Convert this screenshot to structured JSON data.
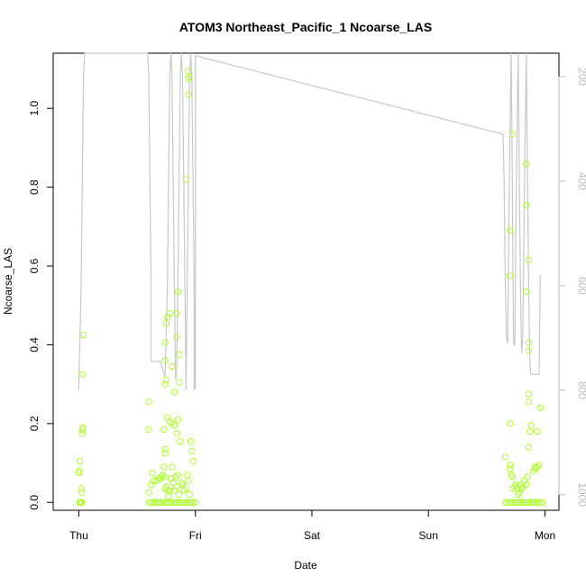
{
  "chart_data": {
    "type": "scatter",
    "title": "ATOM3 Northeast_Pacific_1 Ncoarse_LAS",
    "xlabel": "Date",
    "ylabel": "Ncoarse_LAS",
    "x_unit": "days since Thu 00:00",
    "xlim": [
      -0.22,
      4.12
    ],
    "ylim": [
      -0.02,
      1.14
    ],
    "x_ticks": [
      {
        "value": 0,
        "label": "Thu"
      },
      {
        "value": 1,
        "label": "Fri"
      },
      {
        "value": 2,
        "label": "Sat"
      },
      {
        "value": 3,
        "label": "Sun"
      },
      {
        "value": 4,
        "label": "Mon"
      }
    ],
    "y_ticks": [
      {
        "value": 0.0,
        "label": "0.0"
      },
      {
        "value": 0.2,
        "label": "0.2"
      },
      {
        "value": 0.4,
        "label": "0.4"
      },
      {
        "value": 0.6,
        "label": "0.6"
      },
      {
        "value": 0.8,
        "label": "0.8"
      },
      {
        "value": 1.0,
        "label": "1.0"
      }
    ],
    "right_axis": {
      "label": "",
      "lim": [
        1030,
        155
      ],
      "reversed": true,
      "ticks": [
        {
          "value": 200,
          "label": "200"
        },
        {
          "value": 400,
          "label": "400"
        },
        {
          "value": 600,
          "label": "600"
        },
        {
          "value": 800,
          "label": "800"
        },
        {
          "value": 1000,
          "label": "1000"
        }
      ],
      "color": "#bdbdbd"
    },
    "point_color": "#adff2f",
    "line_color": "#c8c8c8",
    "grid": false,
    "series": [
      {
        "type": "scatter",
        "points": [
          [
            0.005,
            0.0
          ],
          [
            0.01,
            0.0
          ],
          [
            0.015,
            0.0
          ],
          [
            0.02,
            0.0
          ],
          [
            0.025,
            0.0
          ],
          [
            0.0,
            0.075
          ],
          [
            0.005,
            0.08
          ],
          [
            0.01,
            0.105
          ],
          [
            0.02,
            0.035
          ],
          [
            0.025,
            0.025
          ],
          [
            0.03,
            0.175
          ],
          [
            0.03,
            0.185
          ],
          [
            0.035,
            0.19
          ],
          [
            0.03,
            0.325
          ],
          [
            0.04,
            0.425
          ],
          [
            0.6,
            0.0
          ],
          [
            0.62,
            0.0
          ],
          [
            0.64,
            0.0
          ],
          [
            0.66,
            0.0
          ],
          [
            0.68,
            0.0
          ],
          [
            0.7,
            0.0
          ],
          [
            0.72,
            0.0
          ],
          [
            0.74,
            0.0
          ],
          [
            0.76,
            0.0
          ],
          [
            0.78,
            0.0
          ],
          [
            0.8,
            0.0
          ],
          [
            0.82,
            0.0
          ],
          [
            0.84,
            0.0
          ],
          [
            0.86,
            0.0
          ],
          [
            0.88,
            0.0
          ],
          [
            0.9,
            0.0
          ],
          [
            0.92,
            0.0
          ],
          [
            0.94,
            0.0
          ],
          [
            0.96,
            0.0
          ],
          [
            0.98,
            0.0
          ],
          [
            1.0,
            0.0
          ],
          [
            0.6,
            0.255
          ],
          [
            0.6,
            0.185
          ],
          [
            0.6,
            0.025
          ],
          [
            0.62,
            0.045
          ],
          [
            0.63,
            0.075
          ],
          [
            0.64,
            0.055
          ],
          [
            0.66,
            0.055
          ],
          [
            0.68,
            0.06
          ],
          [
            0.7,
            0.06
          ],
          [
            0.71,
            0.065
          ],
          [
            0.72,
            0.07
          ],
          [
            0.73,
            0.09
          ],
          [
            0.74,
            0.065
          ],
          [
            0.75,
            0.04
          ],
          [
            0.74,
            0.035
          ],
          [
            0.76,
            0.03
          ],
          [
            0.77,
            0.015
          ],
          [
            0.78,
            0.03
          ],
          [
            0.79,
            0.06
          ],
          [
            0.8,
            0.09
          ],
          [
            0.81,
            0.05
          ],
          [
            0.82,
            0.03
          ],
          [
            0.83,
            0.065
          ],
          [
            0.84,
            0.04
          ],
          [
            0.85,
            0.07
          ],
          [
            0.86,
            0.02
          ],
          [
            0.87,
            0.155
          ],
          [
            0.88,
            0.05
          ],
          [
            0.89,
            0.045
          ],
          [
            0.9,
            0.03
          ],
          [
            0.92,
            0.035
          ],
          [
            0.93,
            0.07
          ],
          [
            0.94,
            0.055
          ],
          [
            0.95,
            0.02
          ],
          [
            0.96,
            0.155
          ],
          [
            0.97,
            0.13
          ],
          [
            0.98,
            0.105
          ],
          [
            0.74,
            0.135
          ],
          [
            0.74,
            0.125
          ],
          [
            0.73,
            0.185
          ],
          [
            0.76,
            0.215
          ],
          [
            0.78,
            0.205
          ],
          [
            0.8,
            0.2
          ],
          [
            0.82,
            0.195
          ],
          [
            0.84,
            0.175
          ],
          [
            0.85,
            0.21
          ],
          [
            0.74,
            0.3
          ],
          [
            0.75,
            0.31
          ],
          [
            0.74,
            0.36
          ],
          [
            0.74,
            0.405
          ],
          [
            0.75,
            0.455
          ],
          [
            0.76,
            0.47
          ],
          [
            0.78,
            0.48
          ],
          [
            0.8,
            0.345
          ],
          [
            0.82,
            0.28
          ],
          [
            0.84,
            0.48
          ],
          [
            0.85,
            0.535
          ],
          [
            0.84,
            0.42
          ],
          [
            0.86,
            0.375
          ],
          [
            0.86,
            0.305
          ],
          [
            0.92,
            0.82
          ],
          [
            0.94,
            1.035
          ],
          [
            0.94,
            1.075
          ],
          [
            0.95,
            1.08
          ],
          [
            0.94,
            1.095
          ],
          [
            3.66,
            0.0
          ],
          [
            3.68,
            0.0
          ],
          [
            3.7,
            0.0
          ],
          [
            3.72,
            0.0
          ],
          [
            3.74,
            0.0
          ],
          [
            3.76,
            0.0
          ],
          [
            3.78,
            0.0
          ],
          [
            3.8,
            0.0
          ],
          [
            3.82,
            0.0
          ],
          [
            3.84,
            0.0
          ],
          [
            3.86,
            0.0
          ],
          [
            3.88,
            0.0
          ],
          [
            3.9,
            0.0
          ],
          [
            3.92,
            0.0
          ],
          [
            3.94,
            0.0
          ],
          [
            3.96,
            0.0
          ],
          [
            3.98,
            0.0
          ],
          [
            3.66,
            0.115
          ],
          [
            3.7,
            0.095
          ],
          [
            3.7,
            0.085
          ],
          [
            3.71,
            0.07
          ],
          [
            3.72,
            0.065
          ],
          [
            3.72,
            0.035
          ],
          [
            3.74,
            0.04
          ],
          [
            3.75,
            0.045
          ],
          [
            3.76,
            0.035
          ],
          [
            3.77,
            0.02
          ],
          [
            3.78,
            0.025
          ],
          [
            3.79,
            0.045
          ],
          [
            3.8,
            0.035
          ],
          [
            3.81,
            0.04
          ],
          [
            3.82,
            0.055
          ],
          [
            3.84,
            0.045
          ],
          [
            3.85,
            0.065
          ],
          [
            3.86,
            0.14
          ],
          [
            3.87,
            0.18
          ],
          [
            3.88,
            0.195
          ],
          [
            3.9,
            0.08
          ],
          [
            3.91,
            0.09
          ],
          [
            3.92,
            0.085
          ],
          [
            3.93,
            0.09
          ],
          [
            3.95,
            0.095
          ],
          [
            3.96,
            0.24
          ],
          [
            3.86,
            0.255
          ],
          [
            3.86,
            0.275
          ],
          [
            3.7,
            0.2
          ],
          [
            3.93,
            0.18
          ],
          [
            3.86,
            0.385
          ],
          [
            3.86,
            0.405
          ],
          [
            3.84,
            0.535
          ],
          [
            3.86,
            0.615
          ],
          [
            3.7,
            0.575
          ],
          [
            3.7,
            0.69
          ],
          [
            3.84,
            0.755
          ],
          [
            3.84,
            0.86
          ],
          [
            3.72,
            0.935
          ]
        ]
      },
      {
        "type": "line",
        "axis": "right",
        "points": [
          [
            0.0,
            800
          ],
          [
            0.0,
            795
          ],
          [
            0.02,
            600
          ],
          [
            0.03,
            400
          ],
          [
            0.04,
            200
          ],
          [
            0.05,
            155
          ],
          [
            0.59,
            155
          ],
          [
            0.6,
            200
          ],
          [
            0.61,
            400
          ],
          [
            0.62,
            600
          ],
          [
            0.62,
            745
          ],
          [
            0.7,
            745
          ],
          [
            0.72,
            760
          ],
          [
            0.74,
            775
          ],
          [
            0.76,
            600
          ],
          [
            0.77,
            400
          ],
          [
            0.78,
            200
          ],
          [
            0.79,
            155
          ],
          [
            0.8,
            200
          ],
          [
            0.81,
            400
          ],
          [
            0.82,
            600
          ],
          [
            0.83,
            780
          ],
          [
            0.84,
            760
          ],
          [
            0.85,
            600
          ],
          [
            0.86,
            400
          ],
          [
            0.87,
            200
          ],
          [
            0.88,
            155
          ],
          [
            0.89,
            200
          ],
          [
            0.9,
            400
          ],
          [
            0.91,
            600
          ],
          [
            0.92,
            800
          ],
          [
            0.93,
            600
          ],
          [
            0.94,
            400
          ],
          [
            0.95,
            200
          ],
          [
            0.96,
            155
          ],
          [
            0.97,
            200
          ],
          [
            0.98,
            400
          ],
          [
            0.99,
            600
          ],
          [
            0.99,
            800
          ],
          [
            1.0,
            795
          ],
          [
            1.0,
            160
          ],
          [
            3.64,
            310
          ],
          [
            3.65,
            400
          ],
          [
            3.66,
            600
          ],
          [
            3.67,
            700
          ],
          [
            3.68,
            710
          ],
          [
            3.69,
            500
          ],
          [
            3.7,
            300
          ],
          [
            3.71,
            155
          ],
          [
            3.72,
            400
          ],
          [
            3.73,
            710
          ],
          [
            3.74,
            715
          ],
          [
            3.75,
            500
          ],
          [
            3.76,
            300
          ],
          [
            3.77,
            155
          ],
          [
            3.78,
            400
          ],
          [
            3.79,
            600
          ],
          [
            3.8,
            730
          ],
          [
            3.81,
            700
          ],
          [
            3.82,
            500
          ],
          [
            3.83,
            300
          ],
          [
            3.84,
            155
          ],
          [
            3.85,
            400
          ],
          [
            3.86,
            600
          ],
          [
            3.87,
            750
          ],
          [
            3.88,
            770
          ],
          [
            3.9,
            770
          ],
          [
            3.95,
            770
          ],
          [
            3.96,
            580
          ]
        ]
      }
    ]
  }
}
